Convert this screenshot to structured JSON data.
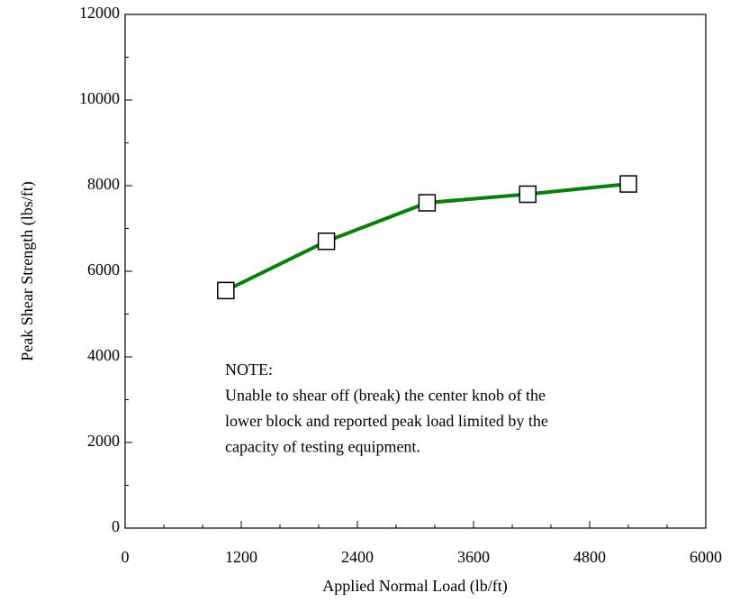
{
  "chart_data": {
    "type": "line",
    "xlabel": "Applied Normal Load (lb/ft)",
    "ylabel": "Peak Shear Strength (lbs/ft)",
    "x": [
      1040,
      2080,
      3120,
      4160,
      5200
    ],
    "series": [
      {
        "color": "#0a7d0a",
        "values": [
          5550,
          6700,
          7600,
          7800,
          8040
        ]
      }
    ],
    "xlim": [
      0,
      6000
    ],
    "xticks": [
      0,
      1200,
      2400,
      3600,
      4800,
      6000
    ],
    "x_minor_ticks": [
      400,
      800,
      1600,
      2000,
      2800,
      3200,
      4000,
      4400,
      5200,
      5600
    ],
    "ylim": [
      0,
      12000
    ],
    "yticks": [
      0,
      2000,
      4000,
      6000,
      8000,
      10000,
      12000
    ],
    "y_minor_ticks": [
      1000,
      3000,
      5000,
      7000,
      9000,
      11000
    ],
    "annotation": [
      "NOTE:",
      "Unable to shear off (break) the center knob  of the",
      "lower block and reported peak load limited by the",
      "capacity of testing equipment."
    ]
  }
}
